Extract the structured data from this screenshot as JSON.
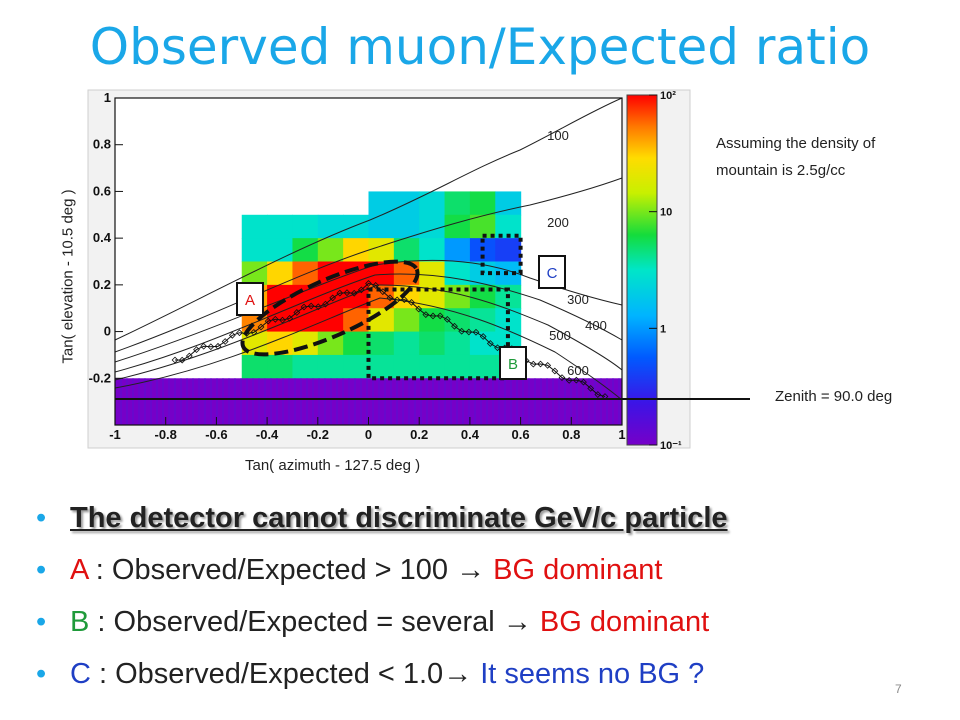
{
  "slide": {
    "title": "Observed muon/Expected ratio",
    "page_number": "7",
    "note_line1": "Assuming the density of",
    "note_line2": "mountain is 2.5g/cc",
    "zenith_label": "Zenith = 90.0 deg"
  },
  "bullets": [
    {
      "parts": [
        {
          "text": "The detector cannot discriminate GeV/c particle",
          "style": "bold"
        }
      ]
    },
    {
      "parts": [
        {
          "text": "A",
          "style": "red"
        },
        {
          "text": " : Observed/Expected > 100 ",
          "style": "plain"
        },
        {
          "text": "→",
          "style": "arrow"
        },
        {
          "text": " BG dominant",
          "style": "red"
        }
      ]
    },
    {
      "parts": [
        {
          "text": "B",
          "style": "green"
        },
        {
          "text": " : Observed/Expected = several ",
          "style": "plain"
        },
        {
          "text": "→",
          "style": "arrow"
        },
        {
          "text": " BG dominant",
          "style": "red"
        }
      ]
    },
    {
      "parts": [
        {
          "text": "C",
          "style": "blue"
        },
        {
          "text": " : Observed/Expected < 1.0",
          "style": "plain"
        },
        {
          "text": "→",
          "style": "arrow"
        },
        {
          "text": " It seems no BG ?",
          "style": "blue"
        }
      ]
    }
  ],
  "colors": {
    "title": "#1aa7e8",
    "A": "#e01010",
    "B": "#1f9a3a",
    "C": "#1f3fc4"
  },
  "chart_data": {
    "type": "heatmap",
    "title": "",
    "xlabel": "Tan( azimuth - 127.5 deg )",
    "ylabel": "Tan( elevation - 10.5 deg )",
    "xlim": [
      -1,
      1
    ],
    "ylim": [
      -0.4,
      1
    ],
    "log_scale_z": true,
    "zlim": [
      0.1,
      100
    ],
    "x_ticks": [
      "-1",
      "-0.8",
      "-0.6",
      "-0.4",
      "-0.2",
      "0",
      "0.2",
      "0.4",
      "0.6",
      "0.8",
      "1"
    ],
    "y_ticks": [
      "-0.2",
      "0",
      "0.2",
      "0.4",
      "0.6",
      "0.8",
      "1"
    ],
    "colorbar_ticks": [
      {
        "value": 100,
        "label": "10²"
      },
      {
        "value": 10,
        "label": "10"
      },
      {
        "value": 1,
        "label": "1"
      },
      {
        "value": 0.1,
        "label": "10⁻¹"
      }
    ],
    "bin_width": 0.1,
    "bin_height": 0.1,
    "cells": [
      {
        "x": -0.5,
        "y": 0.4,
        "z": 3
      },
      {
        "x": -0.4,
        "y": 0.4,
        "z": 3
      },
      {
        "x": -0.3,
        "y": 0.4,
        "z": 3
      },
      {
        "x": -0.2,
        "y": 0.4,
        "z": 2.5
      },
      {
        "x": -0.1,
        "y": 0.4,
        "z": 2.5
      },
      {
        "x": 0.0,
        "y": 0.5,
        "z": 2
      },
      {
        "x": 0.1,
        "y": 0.5,
        "z": 2
      },
      {
        "x": 0.2,
        "y": 0.5,
        "z": 2.5
      },
      {
        "x": 0.3,
        "y": 0.5,
        "z": 5
      },
      {
        "x": 0.4,
        "y": 0.5,
        "z": 6
      },
      {
        "x": 0.5,
        "y": 0.5,
        "z": 2
      },
      {
        "x": 0.0,
        "y": 0.4,
        "z": 2
      },
      {
        "x": 0.1,
        "y": 0.4,
        "z": 2
      },
      {
        "x": 0.2,
        "y": 0.4,
        "z": 2.5
      },
      {
        "x": 0.3,
        "y": 0.4,
        "z": 6
      },
      {
        "x": 0.4,
        "y": 0.4,
        "z": 8
      },
      {
        "x": 0.5,
        "y": 0.4,
        "z": 3
      },
      {
        "x": -0.5,
        "y": 0.3,
        "z": 3
      },
      {
        "x": -0.4,
        "y": 0.3,
        "z": 3
      },
      {
        "x": -0.3,
        "y": 0.3,
        "z": 6
      },
      {
        "x": -0.2,
        "y": 0.3,
        "z": 10
      },
      {
        "x": -0.1,
        "y": 0.3,
        "z": 30
      },
      {
        "x": 0.0,
        "y": 0.3,
        "z": 20
      },
      {
        "x": 0.1,
        "y": 0.3,
        "z": 5
      },
      {
        "x": 0.2,
        "y": 0.3,
        "z": 3
      },
      {
        "x": 0.3,
        "y": 0.3,
        "z": 1
      },
      {
        "x": 0.4,
        "y": 0.3,
        "z": 0.5
      },
      {
        "x": 0.5,
        "y": 0.3,
        "z": 0.4
      },
      {
        "x": -0.5,
        "y": 0.2,
        "z": 10
      },
      {
        "x": -0.4,
        "y": 0.2,
        "z": 30
      },
      {
        "x": -0.3,
        "y": 0.2,
        "z": 60
      },
      {
        "x": -0.2,
        "y": 0.2,
        "z": 100
      },
      {
        "x": -0.1,
        "y": 0.2,
        "z": 100
      },
      {
        "x": 0.0,
        "y": 0.2,
        "z": 100
      },
      {
        "x": 0.1,
        "y": 0.2,
        "z": 60
      },
      {
        "x": 0.2,
        "y": 0.2,
        "z": 20
      },
      {
        "x": 0.3,
        "y": 0.2,
        "z": 3
      },
      {
        "x": 0.4,
        "y": 0.2,
        "z": 2
      },
      {
        "x": 0.5,
        "y": 0.2,
        "z": 1.5
      },
      {
        "x": -0.5,
        "y": 0.1,
        "z": 40
      },
      {
        "x": -0.4,
        "y": 0.1,
        "z": 100
      },
      {
        "x": -0.3,
        "y": 0.1,
        "z": 100
      },
      {
        "x": -0.2,
        "y": 0.1,
        "z": 100
      },
      {
        "x": -0.1,
        "y": 0.1,
        "z": 100
      },
      {
        "x": 0.0,
        "y": 0.1,
        "z": 60
      },
      {
        "x": 0.1,
        "y": 0.1,
        "z": 30
      },
      {
        "x": 0.2,
        "y": 0.1,
        "z": 20
      },
      {
        "x": 0.3,
        "y": 0.1,
        "z": 10
      },
      {
        "x": 0.4,
        "y": 0.1,
        "z": 6
      },
      {
        "x": 0.5,
        "y": 0.1,
        "z": 4
      },
      {
        "x": -0.5,
        "y": 0.0,
        "z": 50
      },
      {
        "x": -0.4,
        "y": 0.0,
        "z": 100
      },
      {
        "x": -0.3,
        "y": 0.0,
        "z": 100
      },
      {
        "x": -0.2,
        "y": 0.0,
        "z": 100
      },
      {
        "x": -0.1,
        "y": 0.0,
        "z": 60
      },
      {
        "x": 0.0,
        "y": 0.0,
        "z": 20
      },
      {
        "x": 0.1,
        "y": 0.0,
        "z": 10
      },
      {
        "x": 0.2,
        "y": 0.0,
        "z": 6
      },
      {
        "x": 0.3,
        "y": 0.0,
        "z": 5
      },
      {
        "x": 0.4,
        "y": 0.0,
        "z": 4
      },
      {
        "x": 0.5,
        "y": 0.0,
        "z": 3
      },
      {
        "x": -0.5,
        "y": -0.1,
        "z": 20
      },
      {
        "x": -0.4,
        "y": -0.1,
        "z": 30
      },
      {
        "x": -0.3,
        "y": -0.1,
        "z": 20
      },
      {
        "x": -0.2,
        "y": -0.1,
        "z": 10
      },
      {
        "x": -0.1,
        "y": -0.1,
        "z": 6
      },
      {
        "x": 0.0,
        "y": -0.1,
        "z": 5
      },
      {
        "x": 0.1,
        "y": -0.1,
        "z": 4
      },
      {
        "x": 0.2,
        "y": -0.1,
        "z": 5
      },
      {
        "x": 0.3,
        "y": -0.1,
        "z": 4
      },
      {
        "x": 0.4,
        "y": -0.1,
        "z": 3
      },
      {
        "x": 0.5,
        "y": -0.1,
        "z": 3
      },
      {
        "x": -0.5,
        "y": -0.2,
        "z": 5
      },
      {
        "x": -0.4,
        "y": -0.2,
        "z": 5
      },
      {
        "x": -0.3,
        "y": -0.2,
        "z": 4
      },
      {
        "x": -0.2,
        "y": -0.2,
        "z": 4
      },
      {
        "x": -0.1,
        "y": -0.2,
        "z": 4
      },
      {
        "x": 0.0,
        "y": -0.2,
        "z": 4
      },
      {
        "x": 0.1,
        "y": -0.2,
        "z": 4
      },
      {
        "x": 0.2,
        "y": -0.2,
        "z": 4
      },
      {
        "x": 0.3,
        "y": -0.2,
        "z": 4
      },
      {
        "x": 0.4,
        "y": -0.2,
        "z": 4
      },
      {
        "x": 0.5,
        "y": -0.2,
        "z": 4
      }
    ],
    "floor_band": {
      "x_range": [
        -1,
        1
      ],
      "y_range": [
        -0.4,
        -0.2
      ],
      "z": 0.1
    },
    "contour_labels": [
      "100",
      "200",
      "300",
      "400",
      "500",
      "600"
    ],
    "regions": [
      {
        "label": "A",
        "shape": "dashed-ellipse"
      },
      {
        "label": "B",
        "shape": "dotted-box",
        "x_range": [
          0.0,
          0.55
        ],
        "y_range": [
          -0.2,
          0.18
        ]
      },
      {
        "label": "C",
        "shape": "dotted-box",
        "x_range": [
          0.45,
          0.6
        ],
        "y_range": [
          0.25,
          0.41
        ]
      }
    ]
  }
}
